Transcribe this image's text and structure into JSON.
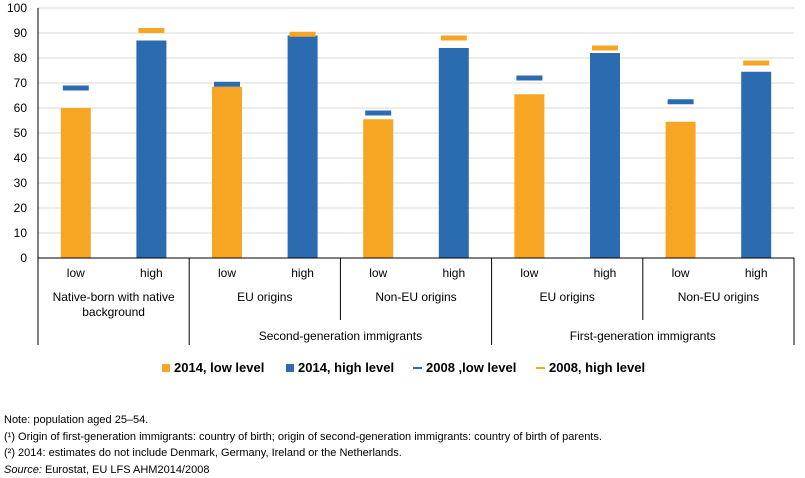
{
  "chart_data": {
    "type": "bar",
    "ylim": [
      0,
      100
    ],
    "y_ticks": [
      0,
      10,
      20,
      30,
      40,
      50,
      60,
      70,
      80,
      90,
      100
    ],
    "gridlines": true,
    "categories": [
      {
        "level": "low",
        "origin": "Native-born with native background",
        "group": ""
      },
      {
        "level": "high",
        "origin": "Native-born with native background",
        "group": ""
      },
      {
        "level": "low",
        "origin": "EU origins",
        "group": "Second-generation immigrants"
      },
      {
        "level": "high",
        "origin": "EU origins",
        "group": "Second-generation immigrants"
      },
      {
        "level": "low",
        "origin": "Non-EU origins",
        "group": "Second-generation immigrants"
      },
      {
        "level": "high",
        "origin": "Non-EU origins",
        "group": "Second-generation immigrants"
      },
      {
        "level": "low",
        "origin": "EU origins",
        "group": "First-generation immigrants"
      },
      {
        "level": "high",
        "origin": "EU origins",
        "group": "First-generation immigrants"
      },
      {
        "level": "low",
        "origin": "Non-EU origins",
        "group": "First-generation immigrants"
      },
      {
        "level": "high",
        "origin": "Non-EU origins",
        "group": "First-generation immigrants"
      }
    ],
    "origin_labels": [
      {
        "text": [
          "Native-born with native",
          "background"
        ]
      },
      {
        "text": [
          "EU origins"
        ]
      },
      {
        "text": [
          "Non-EU origins"
        ]
      },
      {
        "text": [
          "EU origins"
        ]
      },
      {
        "text": [
          "Non-EU origins"
        ]
      }
    ],
    "group_labels": [
      "Second-generation immigrants",
      "First-generation immigrants"
    ],
    "series": [
      {
        "name": "2014, low level",
        "kind": "bar",
        "color": "#F6A623",
        "values": [
          60,
          null,
          68.5,
          null,
          55.5,
          null,
          65.5,
          null,
          54.5,
          null
        ]
      },
      {
        "name": "2014, high level",
        "kind": "bar",
        "color": "#2B6CB0",
        "values": [
          null,
          87,
          null,
          89,
          null,
          84,
          null,
          82,
          null,
          74.5
        ]
      },
      {
        "name": "2008 ,low level",
        "kind": "marker",
        "color": "#2B6CB0",
        "values": [
          68,
          null,
          69.5,
          null,
          58,
          null,
          72,
          null,
          62.5,
          null
        ]
      },
      {
        "name": "2008, high level",
        "kind": "marker",
        "color": "#F6A623",
        "values": [
          null,
          91,
          null,
          89.5,
          null,
          88,
          null,
          84,
          null,
          78
        ]
      }
    ]
  },
  "legend": [
    {
      "label": "2014, low level",
      "color": "#F6A623",
      "style": "box"
    },
    {
      "label": "2014, high level",
      "color": "#2B6CB0",
      "style": "box"
    },
    {
      "label": "2008 ,low level",
      "color": "#2B6CB0",
      "style": "dash"
    },
    {
      "label": "2008, high level",
      "color": "#F6A623",
      "style": "dash"
    }
  ],
  "notes": {
    "line1": "Note: population aged 25–54.",
    "line2": "(¹) Origin of first-generation immigrants: country of birth; origin of second-generation immigrants: country of birth of parents.",
    "line3": "(²) 2014: estimates do not include Denmark, Germany, Ireland or the Netherlands.",
    "source_label": "Source:",
    "source_text": " Eurostat, EU LFS AHM2014/2008"
  }
}
